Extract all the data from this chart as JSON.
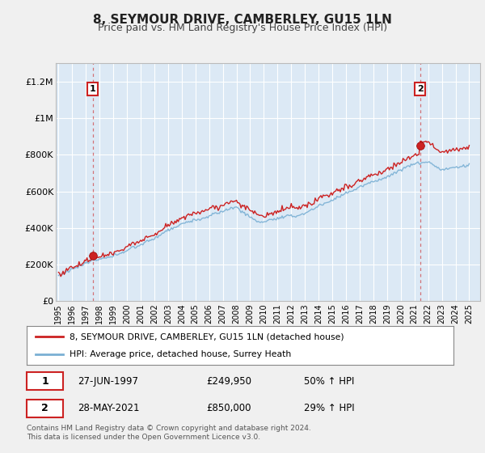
{
  "title": "8, SEYMOUR DRIVE, CAMBERLEY, GU15 1LN",
  "subtitle": "Price paid vs. HM Land Registry's House Price Index (HPI)",
  "yticks": [
    0,
    200000,
    400000,
    600000,
    800000,
    1000000,
    1200000
  ],
  "ytick_labels": [
    "£0",
    "£200K",
    "£400K",
    "£600K",
    "£800K",
    "£1M",
    "£1.2M"
  ],
  "xtick_years": [
    1995,
    1996,
    1997,
    1998,
    1999,
    2000,
    2001,
    2002,
    2003,
    2004,
    2005,
    2006,
    2007,
    2008,
    2009,
    2010,
    2011,
    2012,
    2013,
    2014,
    2015,
    2016,
    2017,
    2018,
    2019,
    2020,
    2021,
    2022,
    2023,
    2024,
    2025
  ],
  "ylim": [
    0,
    1300000
  ],
  "xlim_start": 1994.8,
  "xlim_end": 2025.8,
  "purchase1_year": 1997.49,
  "purchase1_price": 249950,
  "purchase2_year": 2021.41,
  "purchase2_price": 850000,
  "legend_line1": "8, SEYMOUR DRIVE, CAMBERLEY, GU15 1LN (detached house)",
  "legend_line2": "HPI: Average price, detached house, Surrey Heath",
  "ann1_num": "1",
  "ann1_date": "27-JUN-1997",
  "ann1_price": "£249,950",
  "ann1_hpi": "50% ↑ HPI",
  "ann2_num": "2",
  "ann2_date": "28-MAY-2021",
  "ann2_price": "£850,000",
  "ann2_hpi": "29% ↑ HPI",
  "footer": "Contains HM Land Registry data © Crown copyright and database right 2024.\nThis data is licensed under the Open Government Licence v3.0.",
  "line_color_red": "#cc2222",
  "line_color_blue": "#7ab0d4",
  "background_color": "#f0f0f0",
  "plot_bg_color": "#dce9f5",
  "grid_color": "#ffffff",
  "title_fontsize": 11,
  "subtitle_fontsize": 9
}
